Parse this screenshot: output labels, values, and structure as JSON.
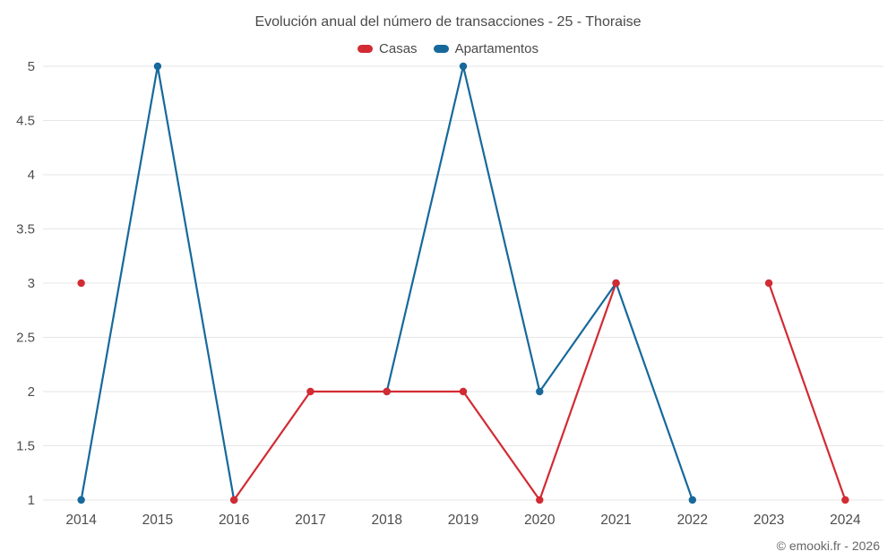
{
  "chart_data": {
    "type": "line",
    "title": "Evolución anual del número de transacciones - 25 - Thoraise",
    "categories": [
      "2014",
      "2015",
      "2016",
      "2017",
      "2018",
      "2019",
      "2020",
      "2021",
      "2022",
      "2023",
      "2024"
    ],
    "series": [
      {
        "name": "Casas",
        "color": "#d22b33",
        "values": [
          3,
          null,
          1,
          2,
          2,
          2,
          1,
          3,
          null,
          3,
          1
        ]
      },
      {
        "name": "Apartamentos",
        "color": "#17699b",
        "values": [
          1,
          5,
          1,
          null,
          2,
          5,
          2,
          3,
          1,
          null,
          null
        ]
      }
    ],
    "xlabel": "",
    "ylabel": "",
    "ylim": [
      1,
      5
    ],
    "yticks": [
      1,
      1.5,
      2,
      2.5,
      3,
      3.5,
      4,
      4.5,
      5
    ],
    "grid": true,
    "grid_color": "#e6e6e6",
    "tick_label_color": "#4d4d4d",
    "legend_position": "top",
    "watermark": "© emooki.fr - 2026"
  }
}
